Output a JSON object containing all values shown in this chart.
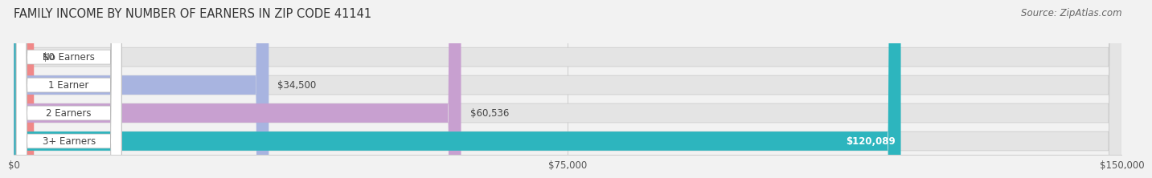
{
  "title": "FAMILY INCOME BY NUMBER OF EARNERS IN ZIP CODE 41141",
  "source": "Source: ZipAtlas.com",
  "categories": [
    "No Earners",
    "1 Earner",
    "2 Earners",
    "3+ Earners"
  ],
  "values": [
    0,
    34500,
    60536,
    120089
  ],
  "bar_colors": [
    "#f08888",
    "#a8b4e0",
    "#c8a0d0",
    "#2db5be"
  ],
  "value_labels": [
    "$0",
    "$34,500",
    "$60,536",
    "$120,089"
  ],
  "value_label_inside": [
    false,
    false,
    false,
    true
  ],
  "xlim": [
    0,
    150000
  ],
  "xticks": [
    0,
    75000,
    150000
  ],
  "xtick_labels": [
    "$0",
    "$75,000",
    "$150,000"
  ],
  "background_color": "#f2f2f2",
  "bar_bg_color": "#e4e4e4",
  "grid_color": "#cccccc",
  "title_fontsize": 10.5,
  "source_fontsize": 8.5,
  "label_fontsize": 8.5,
  "value_fontsize": 8.5,
  "tick_fontsize": 8.5
}
